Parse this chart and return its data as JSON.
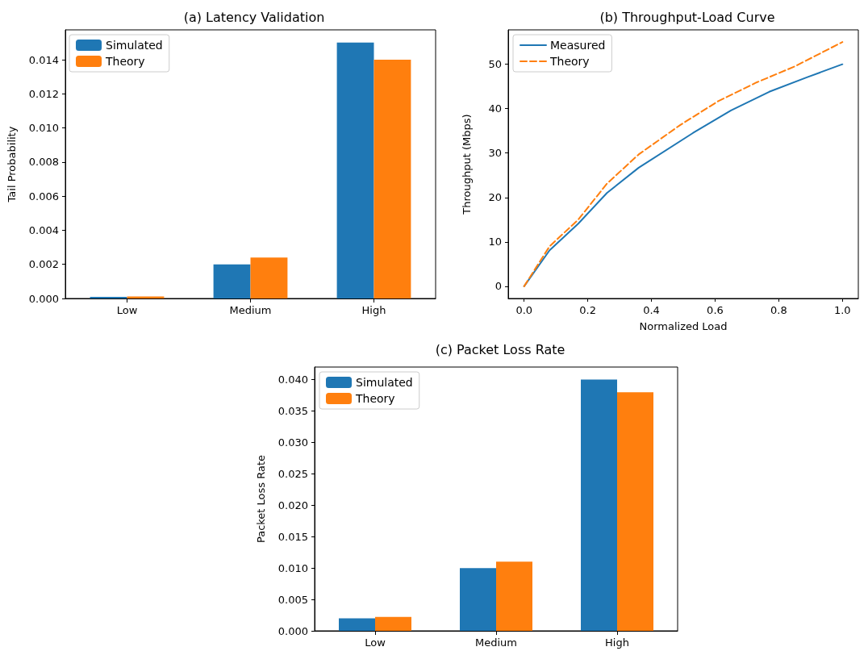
{
  "chart_data": [
    {
      "type": "bar",
      "title": "(a) Latency Validation",
      "ylabel": "Tail Probability",
      "categories": [
        "Low",
        "Medium",
        "High"
      ],
      "series": [
        {
          "name": "Simulated",
          "color": "#1f77b4",
          "values": [
            0.0001,
            0.002,
            0.015
          ]
        },
        {
          "name": "Theory",
          "color": "#ff7f0e",
          "values": [
            0.00012,
            0.0024,
            0.014
          ]
        }
      ],
      "ylim": [
        0,
        0.01575
      ],
      "yticks": [
        {
          "value": 0,
          "label": "0.000"
        },
        {
          "value": 0.002,
          "label": "0.002"
        },
        {
          "value": 0.004,
          "label": "0.004"
        },
        {
          "value": 0.006,
          "label": "0.006"
        },
        {
          "value": 0.008,
          "label": "0.008"
        },
        {
          "value": 0.01,
          "label": "0.010"
        },
        {
          "value": 0.012,
          "label": "0.012"
        },
        {
          "value": 0.014,
          "label": "0.014"
        }
      ],
      "grid": false,
      "legend": "top left"
    },
    {
      "type": "line",
      "title": "(b) Throughput-Load Curve",
      "xlabel": "Normalized Load",
      "ylabel": "Throughput (Mbps)",
      "series": [
        {
          "name": "Measured",
          "color": "#1f77b4",
          "line_style": "solid",
          "x": [
            0,
            0.08,
            0.17,
            0.26,
            0.36,
            0.53,
            0.65,
            0.77,
            0.89,
            1.0
          ],
          "values": [
            0,
            8.1,
            14.1,
            21,
            26.7,
            34.5,
            39.6,
            43.8,
            47.1,
            50
          ]
        },
        {
          "name": "Theory",
          "color": "#ff7f0e",
          "line_style": "dashed",
          "x": [
            0,
            0.08,
            0.17,
            0.26,
            0.36,
            0.49,
            0.61,
            0.73,
            0.85,
            1.0
          ],
          "values": [
            0,
            9,
            15,
            23.1,
            29.7,
            36.3,
            41.7,
            45.9,
            49.5,
            55
          ]
        }
      ],
      "xlim": [
        -0.05,
        1.05
      ],
      "xticks": [
        {
          "value": 0,
          "label": "0.0"
        },
        0.2,
        0.4,
        0.6,
        0.8,
        {
          "value": 1,
          "label": "1.0"
        }
      ],
      "ylim": [
        -2.75,
        57.75
      ],
      "yticks": [
        0,
        10,
        20,
        30,
        40,
        50
      ],
      "marker": "none",
      "grid": false,
      "legend": "top left"
    },
    {
      "type": "bar",
      "title": "(c) Packet Loss Rate",
      "ylabel": "Packet Loss Rate",
      "categories": [
        "Low",
        "Medium",
        "High"
      ],
      "series": [
        {
          "name": "Simulated",
          "color": "#1f77b4",
          "values": [
            0.002,
            0.01,
            0.04
          ]
        },
        {
          "name": "Theory",
          "color": "#ff7f0e",
          "values": [
            0.0022,
            0.011,
            0.038
          ]
        }
      ],
      "ylim": [
        0,
        0.042
      ],
      "yticks": [
        {
          "value": 0,
          "label": "0.000"
        },
        {
          "value": 0.005,
          "label": "0.005"
        },
        {
          "value": 0.01,
          "label": "0.010"
        },
        {
          "value": 0.015,
          "label": "0.015"
        },
        {
          "value": 0.02,
          "label": "0.020"
        },
        {
          "value": 0.025,
          "label": "0.025"
        },
        {
          "value": 0.03,
          "label": "0.030"
        },
        {
          "value": 0.035,
          "label": "0.035"
        },
        {
          "value": 0.04,
          "label": "0.040"
        }
      ],
      "grid": false,
      "legend": "top left"
    }
  ]
}
